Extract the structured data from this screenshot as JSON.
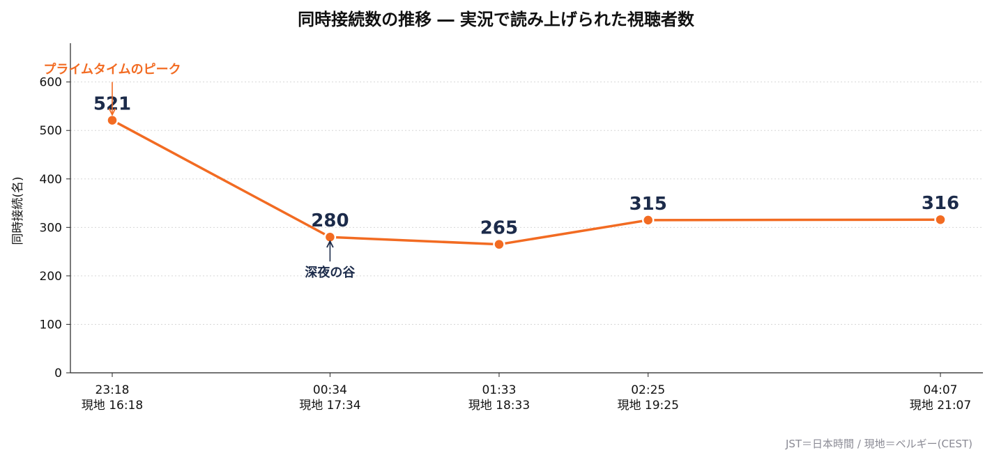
{
  "chart_data": {
    "type": "line",
    "title": "同時接続数の推移 ― 実況で読み上げられた視聴者数",
    "xlabel": "",
    "ylabel": "同時接続(名)",
    "ylim": [
      0,
      680
    ],
    "yticks": [
      0,
      100,
      200,
      300,
      400,
      500,
      600
    ],
    "grid": "y-dotted",
    "x": [
      "23:18",
      "00:34",
      "01:33",
      "02:25",
      "04:07"
    ],
    "x_minutes": [
      0,
      76,
      135,
      187,
      289
    ],
    "x_local": [
      "現地 16:18",
      "現地 17:34",
      "現地 18:33",
      "現地 19:25",
      "現地 21:07"
    ],
    "series": [
      {
        "name": "",
        "values": [
          521,
          280,
          265,
          315,
          316
        ],
        "color": "#f26b22"
      }
    ],
    "data_labels": [
      "521",
      "280",
      "265",
      "315",
      "316"
    ],
    "annotations": [
      {
        "text": "プライムタイムのピーク",
        "x": "23:18",
        "y": 521,
        "color": "#f26b22"
      },
      {
        "text": "深夜の谷",
        "x": "00:34",
        "y": 280,
        "color": "#1c2b4a"
      }
    ],
    "footnote": "JST＝日本時間 / 現地＝ベルギー(CEST)"
  },
  "colors": {
    "line": "#f26b22",
    "label": "#1c2b4a",
    "axis": "#222222",
    "grid": "#d6d6d6"
  }
}
